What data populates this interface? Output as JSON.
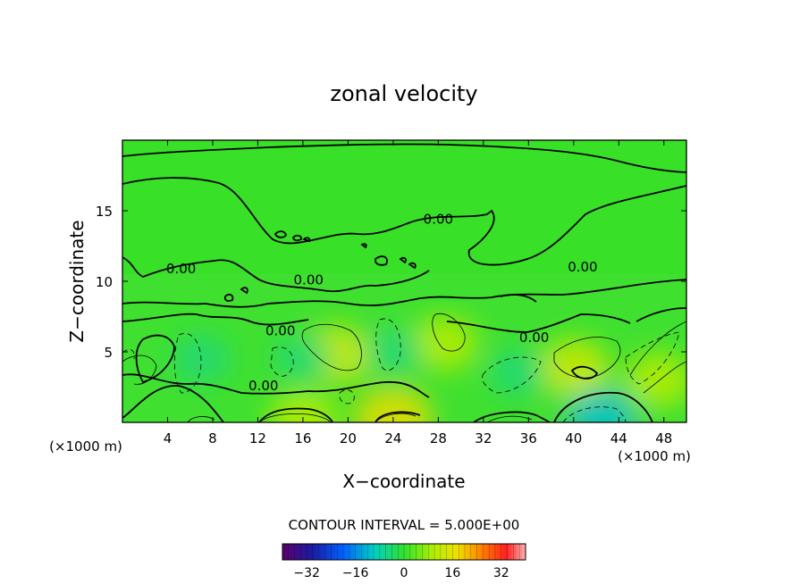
{
  "chart_data": {
    "type": "contour",
    "title": "zonal velocity",
    "xlabel": "X−coordinate",
    "ylabel": "Z−coordinate",
    "x_unit_label": "(×1000 m)",
    "z_unit_label": "(×1000 m)",
    "xlim": [
      0,
      50
    ],
    "ylim": [
      0,
      20
    ],
    "x_ticks": [
      4,
      8,
      12,
      16,
      20,
      24,
      28,
      32,
      36,
      40,
      44,
      48
    ],
    "y_ticks": [
      5,
      10,
      15
    ],
    "contour_label": "0.00",
    "contour_labels": [
      {
        "x": 5.2,
        "z": 10.9
      },
      {
        "x": 16.5,
        "z": 10.1
      },
      {
        "x": 14.0,
        "z": 6.5
      },
      {
        "x": 12.5,
        "z": 2.6
      },
      {
        "x": 28.0,
        "z": 14.4
      },
      {
        "x": 40.8,
        "z": 11.0
      },
      {
        "x": 36.5,
        "z": 6.0
      }
    ],
    "contour_interval_text": "CONTOUR INTERVAL = 5.000E+00",
    "colorbar": {
      "range": [
        -40,
        40
      ],
      "ticks": [
        -32,
        -16,
        0,
        16,
        32
      ],
      "colors": [
        "#4b0082",
        "#0000ff",
        "#00ffff",
        "#00ff00",
        "#ffff00",
        "#ff8c00",
        "#ff0000",
        "#ffb6c1"
      ]
    },
    "features": [
      {
        "x": 19.0,
        "z": 4.8,
        "value": 12,
        "kind": "max"
      },
      {
        "x": 28.5,
        "z": 5.6,
        "value": 10,
        "kind": "max"
      },
      {
        "x": 40.0,
        "z": 3.8,
        "value": 12,
        "kind": "max"
      },
      {
        "x": 47.5,
        "z": 3.0,
        "value": 10,
        "kind": "max"
      },
      {
        "x": 42.5,
        "z": 0.3,
        "value": -12,
        "kind": "min"
      },
      {
        "x": 7.0,
        "z": 4.5,
        "value": -5,
        "kind": "min"
      },
      {
        "x": 24.0,
        "z": 5.0,
        "value": -5,
        "kind": "min"
      },
      {
        "x": 16.0,
        "z": 4.5,
        "value": -5,
        "kind": "min"
      },
      {
        "x": 35.0,
        "z": 3.5,
        "value": -5,
        "kind": "min"
      },
      {
        "x": 24.0,
        "z": 0.3,
        "value": 15,
        "kind": "max"
      },
      {
        "x": 16.0,
        "z": 0.3,
        "value": 10,
        "kind": "max"
      }
    ]
  }
}
